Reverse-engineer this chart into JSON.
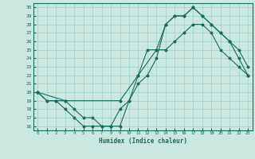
{
  "xlabel": "Humidex (Indice chaleur)",
  "bg_color": "#c8e8e0",
  "grid_color": "#9ecfca",
  "line_color": "#1a6b60",
  "xlim": [
    -0.5,
    23.5
  ],
  "ylim": [
    15.5,
    30.5
  ],
  "xticks": [
    0,
    1,
    2,
    3,
    4,
    5,
    6,
    7,
    8,
    9,
    10,
    11,
    12,
    13,
    14,
    15,
    16,
    17,
    18,
    19,
    20,
    21,
    22,
    23
  ],
  "yticks": [
    16,
    17,
    18,
    19,
    20,
    21,
    22,
    23,
    24,
    25,
    26,
    27,
    28,
    29,
    30
  ],
  "curve1_x": [
    0,
    1,
    2,
    3,
    4,
    5,
    6,
    7,
    8,
    9,
    10,
    11,
    12,
    13,
    14,
    15,
    16,
    17,
    18,
    19,
    20,
    21,
    22,
    23
  ],
  "curve1_y": [
    20,
    19,
    19,
    19,
    18,
    17,
    17,
    16,
    16,
    16,
    19,
    21,
    22,
    24,
    28,
    29,
    29,
    30,
    29,
    28,
    27,
    26,
    25,
    23
  ],
  "curve2_x": [
    0,
    1,
    2,
    3,
    4,
    5,
    6,
    7,
    8,
    9,
    10,
    11,
    12,
    13,
    14,
    15,
    16,
    17,
    18,
    19,
    20,
    21,
    22,
    23
  ],
  "curve2_y": [
    20,
    19,
    19,
    18,
    17,
    16,
    16,
    16,
    16,
    18,
    19,
    22,
    25,
    25,
    25,
    26,
    27,
    28,
    28,
    27,
    25,
    24,
    23,
    22
  ],
  "curve3_x": [
    0,
    3,
    9,
    11,
    13,
    14,
    15,
    16,
    17,
    18,
    19,
    20,
    21,
    22,
    23
  ],
  "curve3_y": [
    20,
    19,
    19,
    22,
    25,
    28,
    29,
    29,
    30,
    29,
    28,
    27,
    26,
    24,
    22
  ]
}
